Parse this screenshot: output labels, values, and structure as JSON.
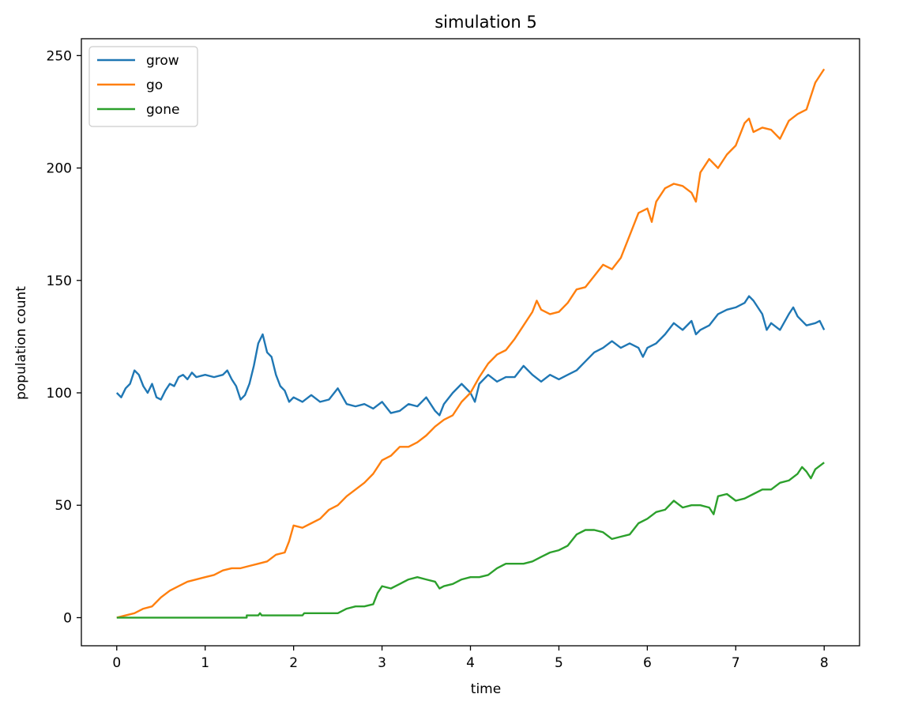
{
  "chart_data": {
    "type": "line",
    "title": "simulation 5",
    "xlabel": "time",
    "ylabel": "population count",
    "xlim": [
      -0.4,
      8.4
    ],
    "ylim": [
      -12.5,
      257.5
    ],
    "xticks": [
      0,
      1,
      2,
      3,
      4,
      5,
      6,
      7,
      8
    ],
    "yticks": [
      0,
      50,
      100,
      150,
      200,
      250
    ],
    "grid": false,
    "legend_position": "top-left",
    "series": [
      {
        "name": "grow",
        "color": "#1f77b4",
        "points": [
          [
            0,
            100
          ],
          [
            0.05,
            98
          ],
          [
            0.1,
            102
          ],
          [
            0.15,
            104
          ],
          [
            0.2,
            110
          ],
          [
            0.25,
            108
          ],
          [
            0.3,
            103
          ],
          [
            0.35,
            100
          ],
          [
            0.4,
            104
          ],
          [
            0.45,
            98
          ],
          [
            0.5,
            97
          ],
          [
            0.55,
            101
          ],
          [
            0.6,
            104
          ],
          [
            0.65,
            103
          ],
          [
            0.7,
            107
          ],
          [
            0.75,
            108
          ],
          [
            0.8,
            106
          ],
          [
            0.85,
            109
          ],
          [
            0.9,
            107
          ],
          [
            1.0,
            108
          ],
          [
            1.1,
            107
          ],
          [
            1.2,
            108
          ],
          [
            1.25,
            110
          ],
          [
            1.3,
            106
          ],
          [
            1.35,
            103
          ],
          [
            1.4,
            97
          ],
          [
            1.45,
            99
          ],
          [
            1.5,
            104
          ],
          [
            1.55,
            112
          ],
          [
            1.6,
            122
          ],
          [
            1.65,
            126
          ],
          [
            1.7,
            118
          ],
          [
            1.75,
            116
          ],
          [
            1.8,
            108
          ],
          [
            1.85,
            103
          ],
          [
            1.9,
            101
          ],
          [
            1.95,
            96
          ],
          [
            2.0,
            98
          ],
          [
            2.1,
            96
          ],
          [
            2.2,
            99
          ],
          [
            2.3,
            96
          ],
          [
            2.4,
            97
          ],
          [
            2.5,
            102
          ],
          [
            2.6,
            95
          ],
          [
            2.7,
            94
          ],
          [
            2.8,
            95
          ],
          [
            2.9,
            93
          ],
          [
            3.0,
            96
          ],
          [
            3.1,
            91
          ],
          [
            3.2,
            92
          ],
          [
            3.3,
            95
          ],
          [
            3.4,
            94
          ],
          [
            3.5,
            98
          ],
          [
            3.6,
            92
          ],
          [
            3.65,
            90
          ],
          [
            3.7,
            95
          ],
          [
            3.8,
            100
          ],
          [
            3.9,
            104
          ],
          [
            4.0,
            100
          ],
          [
            4.05,
            96
          ],
          [
            4.1,
            104
          ],
          [
            4.2,
            108
          ],
          [
            4.3,
            105
          ],
          [
            4.4,
            107
          ],
          [
            4.5,
            107
          ],
          [
            4.6,
            112
          ],
          [
            4.7,
            108
          ],
          [
            4.8,
            105
          ],
          [
            4.9,
            108
          ],
          [
            5.0,
            106
          ],
          [
            5.1,
            108
          ],
          [
            5.2,
            110
          ],
          [
            5.3,
            114
          ],
          [
            5.4,
            118
          ],
          [
            5.5,
            120
          ],
          [
            5.6,
            123
          ],
          [
            5.7,
            120
          ],
          [
            5.8,
            122
          ],
          [
            5.9,
            120
          ],
          [
            5.95,
            116
          ],
          [
            6.0,
            120
          ],
          [
            6.1,
            122
          ],
          [
            6.2,
            126
          ],
          [
            6.3,
            131
          ],
          [
            6.4,
            128
          ],
          [
            6.5,
            132
          ],
          [
            6.55,
            126
          ],
          [
            6.6,
            128
          ],
          [
            6.7,
            130
          ],
          [
            6.8,
            135
          ],
          [
            6.9,
            137
          ],
          [
            7.0,
            138
          ],
          [
            7.1,
            140
          ],
          [
            7.15,
            143
          ],
          [
            7.2,
            141
          ],
          [
            7.3,
            135
          ],
          [
            7.35,
            128
          ],
          [
            7.4,
            131
          ],
          [
            7.5,
            128
          ],
          [
            7.6,
            135
          ],
          [
            7.65,
            138
          ],
          [
            7.7,
            134
          ],
          [
            7.8,
            130
          ],
          [
            7.9,
            131
          ],
          [
            7.95,
            132
          ],
          [
            8.0,
            128
          ]
        ]
      },
      {
        "name": "go",
        "color": "#ff7f0e",
        "points": [
          [
            0,
            0
          ],
          [
            0.1,
            1
          ],
          [
            0.2,
            2
          ],
          [
            0.3,
            4
          ],
          [
            0.4,
            5
          ],
          [
            0.5,
            9
          ],
          [
            0.6,
            12
          ],
          [
            0.7,
            14
          ],
          [
            0.8,
            16
          ],
          [
            0.9,
            17
          ],
          [
            1.0,
            18
          ],
          [
            1.1,
            19
          ],
          [
            1.2,
            21
          ],
          [
            1.3,
            22
          ],
          [
            1.4,
            22
          ],
          [
            1.5,
            23
          ],
          [
            1.6,
            24
          ],
          [
            1.7,
            25
          ],
          [
            1.8,
            28
          ],
          [
            1.9,
            29
          ],
          [
            1.95,
            34
          ],
          [
            2.0,
            41
          ],
          [
            2.1,
            40
          ],
          [
            2.2,
            42
          ],
          [
            2.3,
            44
          ],
          [
            2.4,
            48
          ],
          [
            2.5,
            50
          ],
          [
            2.6,
            54
          ],
          [
            2.7,
            57
          ],
          [
            2.8,
            60
          ],
          [
            2.9,
            64
          ],
          [
            3.0,
            70
          ],
          [
            3.1,
            72
          ],
          [
            3.2,
            76
          ],
          [
            3.3,
            76
          ],
          [
            3.4,
            78
          ],
          [
            3.5,
            81
          ],
          [
            3.6,
            85
          ],
          [
            3.7,
            88
          ],
          [
            3.8,
            90
          ],
          [
            3.9,
            96
          ],
          [
            4.0,
            100
          ],
          [
            4.1,
            107
          ],
          [
            4.2,
            113
          ],
          [
            4.3,
            117
          ],
          [
            4.4,
            119
          ],
          [
            4.5,
            124
          ],
          [
            4.6,
            130
          ],
          [
            4.7,
            136
          ],
          [
            4.75,
            141
          ],
          [
            4.8,
            137
          ],
          [
            4.9,
            135
          ],
          [
            5.0,
            136
          ],
          [
            5.1,
            140
          ],
          [
            5.2,
            146
          ],
          [
            5.3,
            147
          ],
          [
            5.4,
            152
          ],
          [
            5.5,
            157
          ],
          [
            5.6,
            155
          ],
          [
            5.7,
            160
          ],
          [
            5.8,
            170
          ],
          [
            5.9,
            180
          ],
          [
            6.0,
            182
          ],
          [
            6.05,
            176
          ],
          [
            6.1,
            185
          ],
          [
            6.2,
            191
          ],
          [
            6.3,
            193
          ],
          [
            6.4,
            192
          ],
          [
            6.5,
            189
          ],
          [
            6.55,
            185
          ],
          [
            6.6,
            198
          ],
          [
            6.7,
            204
          ],
          [
            6.8,
            200
          ],
          [
            6.9,
            206
          ],
          [
            7.0,
            210
          ],
          [
            7.1,
            220
          ],
          [
            7.15,
            222
          ],
          [
            7.2,
            216
          ],
          [
            7.3,
            218
          ],
          [
            7.4,
            217
          ],
          [
            7.5,
            213
          ],
          [
            7.6,
            221
          ],
          [
            7.7,
            224
          ],
          [
            7.8,
            226
          ],
          [
            7.9,
            238
          ],
          [
            8.0,
            244
          ]
        ]
      },
      {
        "name": "gone",
        "color": "#2ca02c",
        "points": [
          [
            0,
            0
          ],
          [
            0.5,
            0
          ],
          [
            1.0,
            0
          ],
          [
            1.47,
            0
          ],
          [
            1.47,
            1
          ],
          [
            1.6,
            1
          ],
          [
            1.62,
            2
          ],
          [
            1.64,
            1
          ],
          [
            2.1,
            1
          ],
          [
            2.12,
            2
          ],
          [
            2.5,
            2
          ],
          [
            2.6,
            4
          ],
          [
            2.7,
            5
          ],
          [
            2.8,
            5
          ],
          [
            2.9,
            6
          ],
          [
            2.95,
            11
          ],
          [
            3.0,
            14
          ],
          [
            3.1,
            13
          ],
          [
            3.2,
            15
          ],
          [
            3.3,
            17
          ],
          [
            3.4,
            18
          ],
          [
            3.5,
            17
          ],
          [
            3.6,
            16
          ],
          [
            3.65,
            13
          ],
          [
            3.7,
            14
          ],
          [
            3.8,
            15
          ],
          [
            3.9,
            17
          ],
          [
            4.0,
            18
          ],
          [
            4.1,
            18
          ],
          [
            4.2,
            19
          ],
          [
            4.3,
            22
          ],
          [
            4.4,
            24
          ],
          [
            4.5,
            24
          ],
          [
            4.6,
            24
          ],
          [
            4.7,
            25
          ],
          [
            4.8,
            27
          ],
          [
            4.9,
            29
          ],
          [
            5.0,
            30
          ],
          [
            5.1,
            32
          ],
          [
            5.2,
            37
          ],
          [
            5.3,
            39
          ],
          [
            5.4,
            39
          ],
          [
            5.5,
            38
          ],
          [
            5.6,
            35
          ],
          [
            5.7,
            36
          ],
          [
            5.8,
            37
          ],
          [
            5.9,
            42
          ],
          [
            6.0,
            44
          ],
          [
            6.1,
            47
          ],
          [
            6.2,
            48
          ],
          [
            6.3,
            52
          ],
          [
            6.4,
            49
          ],
          [
            6.5,
            50
          ],
          [
            6.6,
            50
          ],
          [
            6.7,
            49
          ],
          [
            6.75,
            46
          ],
          [
            6.8,
            54
          ],
          [
            6.9,
            55
          ],
          [
            7.0,
            52
          ],
          [
            7.1,
            53
          ],
          [
            7.2,
            55
          ],
          [
            7.3,
            57
          ],
          [
            7.4,
            57
          ],
          [
            7.5,
            60
          ],
          [
            7.6,
            61
          ],
          [
            7.7,
            64
          ],
          [
            7.75,
            67
          ],
          [
            7.8,
            65
          ],
          [
            7.85,
            62
          ],
          [
            7.9,
            66
          ],
          [
            8.0,
            69
          ]
        ]
      }
    ]
  }
}
